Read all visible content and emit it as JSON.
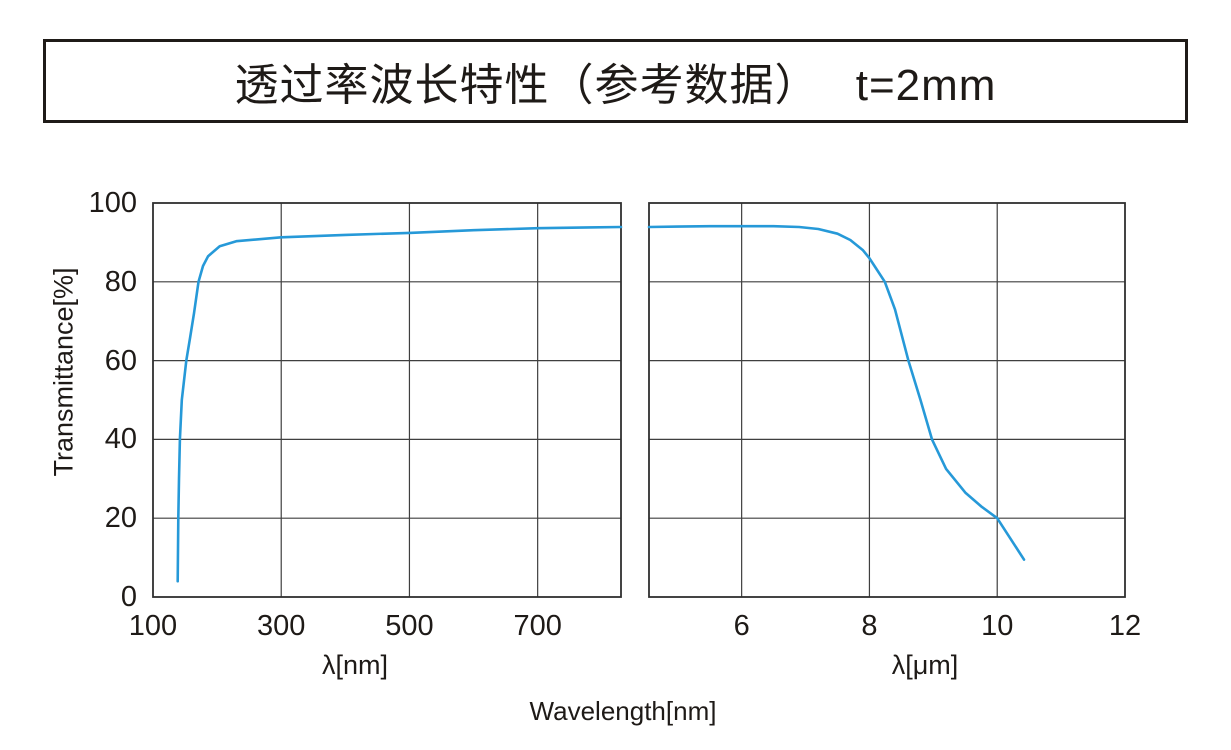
{
  "title": "透过率波长特性（参考数据）　 t=2mm",
  "colors": {
    "curve": "#2699d8",
    "grid": "#3f3f3f",
    "axis_border": "#2f2f2f",
    "text": "#1e1a17",
    "background": "#ffffff"
  },
  "chart_data": {
    "type": "line",
    "title": "透过率波长特性（参考数据） t=2mm",
    "ylabel": "Transmittance[%]",
    "xlabel_shared": "Wavelength[nm]",
    "ylim": [
      0,
      100
    ],
    "yticks": [
      0,
      20,
      40,
      60,
      80,
      100
    ],
    "grid": true,
    "legend": "none",
    "broken_axis": true,
    "panels": [
      {
        "name": "uv-visible-panel",
        "xlabel": "λ[nm]",
        "xunit": "nm",
        "xlim": [
          100,
          830
        ],
        "xticks": [
          100,
          300,
          500,
          700
        ],
        "series": [
          {
            "name": "transmittance-uv-vis",
            "points": [
              [
                138.5,
                4
              ],
              [
                139,
                12
              ],
              [
                139.5,
                20
              ],
              [
                140.5,
                30
              ],
              [
                142,
                40
              ],
              [
                145,
                50
              ],
              [
                152,
                60
              ],
              [
                158,
                66
              ],
              [
                164,
                72
              ],
              [
                171,
                80
              ],
              [
                178,
                84
              ],
              [
                186,
                86.5
              ],
              [
                204,
                89
              ],
              [
                230,
                90.3
              ],
              [
                300,
                91.3
              ],
              [
                400,
                91.9
              ],
              [
                500,
                92.4
              ],
              [
                600,
                93.1
              ],
              [
                700,
                93.6
              ],
              [
                780,
                93.8
              ],
              [
                830,
                93.9
              ]
            ]
          }
        ]
      },
      {
        "name": "infrared-panel",
        "xlabel": "λ[μm]",
        "xunit": "μm",
        "xlim": [
          4.55,
          12
        ],
        "xticks": [
          6,
          8,
          10,
          12
        ],
        "series": [
          {
            "name": "transmittance-ir",
            "points": [
              [
                4.55,
                93.9
              ],
              [
                5,
                94
              ],
              [
                5.5,
                94.1
              ],
              [
                6,
                94.1
              ],
              [
                6.5,
                94.1
              ],
              [
                6.9,
                93.9
              ],
              [
                7.2,
                93.4
              ],
              [
                7.5,
                92.2
              ],
              [
                7.7,
                90.6
              ],
              [
                7.9,
                88
              ],
              [
                8.0,
                86
              ],
              [
                8.1,
                83.5
              ],
              [
                8.24,
                80
              ],
              [
                8.4,
                73
              ],
              [
                8.61,
                60
              ],
              [
                8.8,
                50
              ],
              [
                8.98,
                40
              ],
              [
                9.2,
                32.5
              ],
              [
                9.5,
                26.5
              ],
              [
                9.75,
                23
              ],
              [
                10,
                20
              ],
              [
                10.2,
                15
              ],
              [
                10.42,
                9.5
              ]
            ]
          }
        ]
      }
    ]
  }
}
